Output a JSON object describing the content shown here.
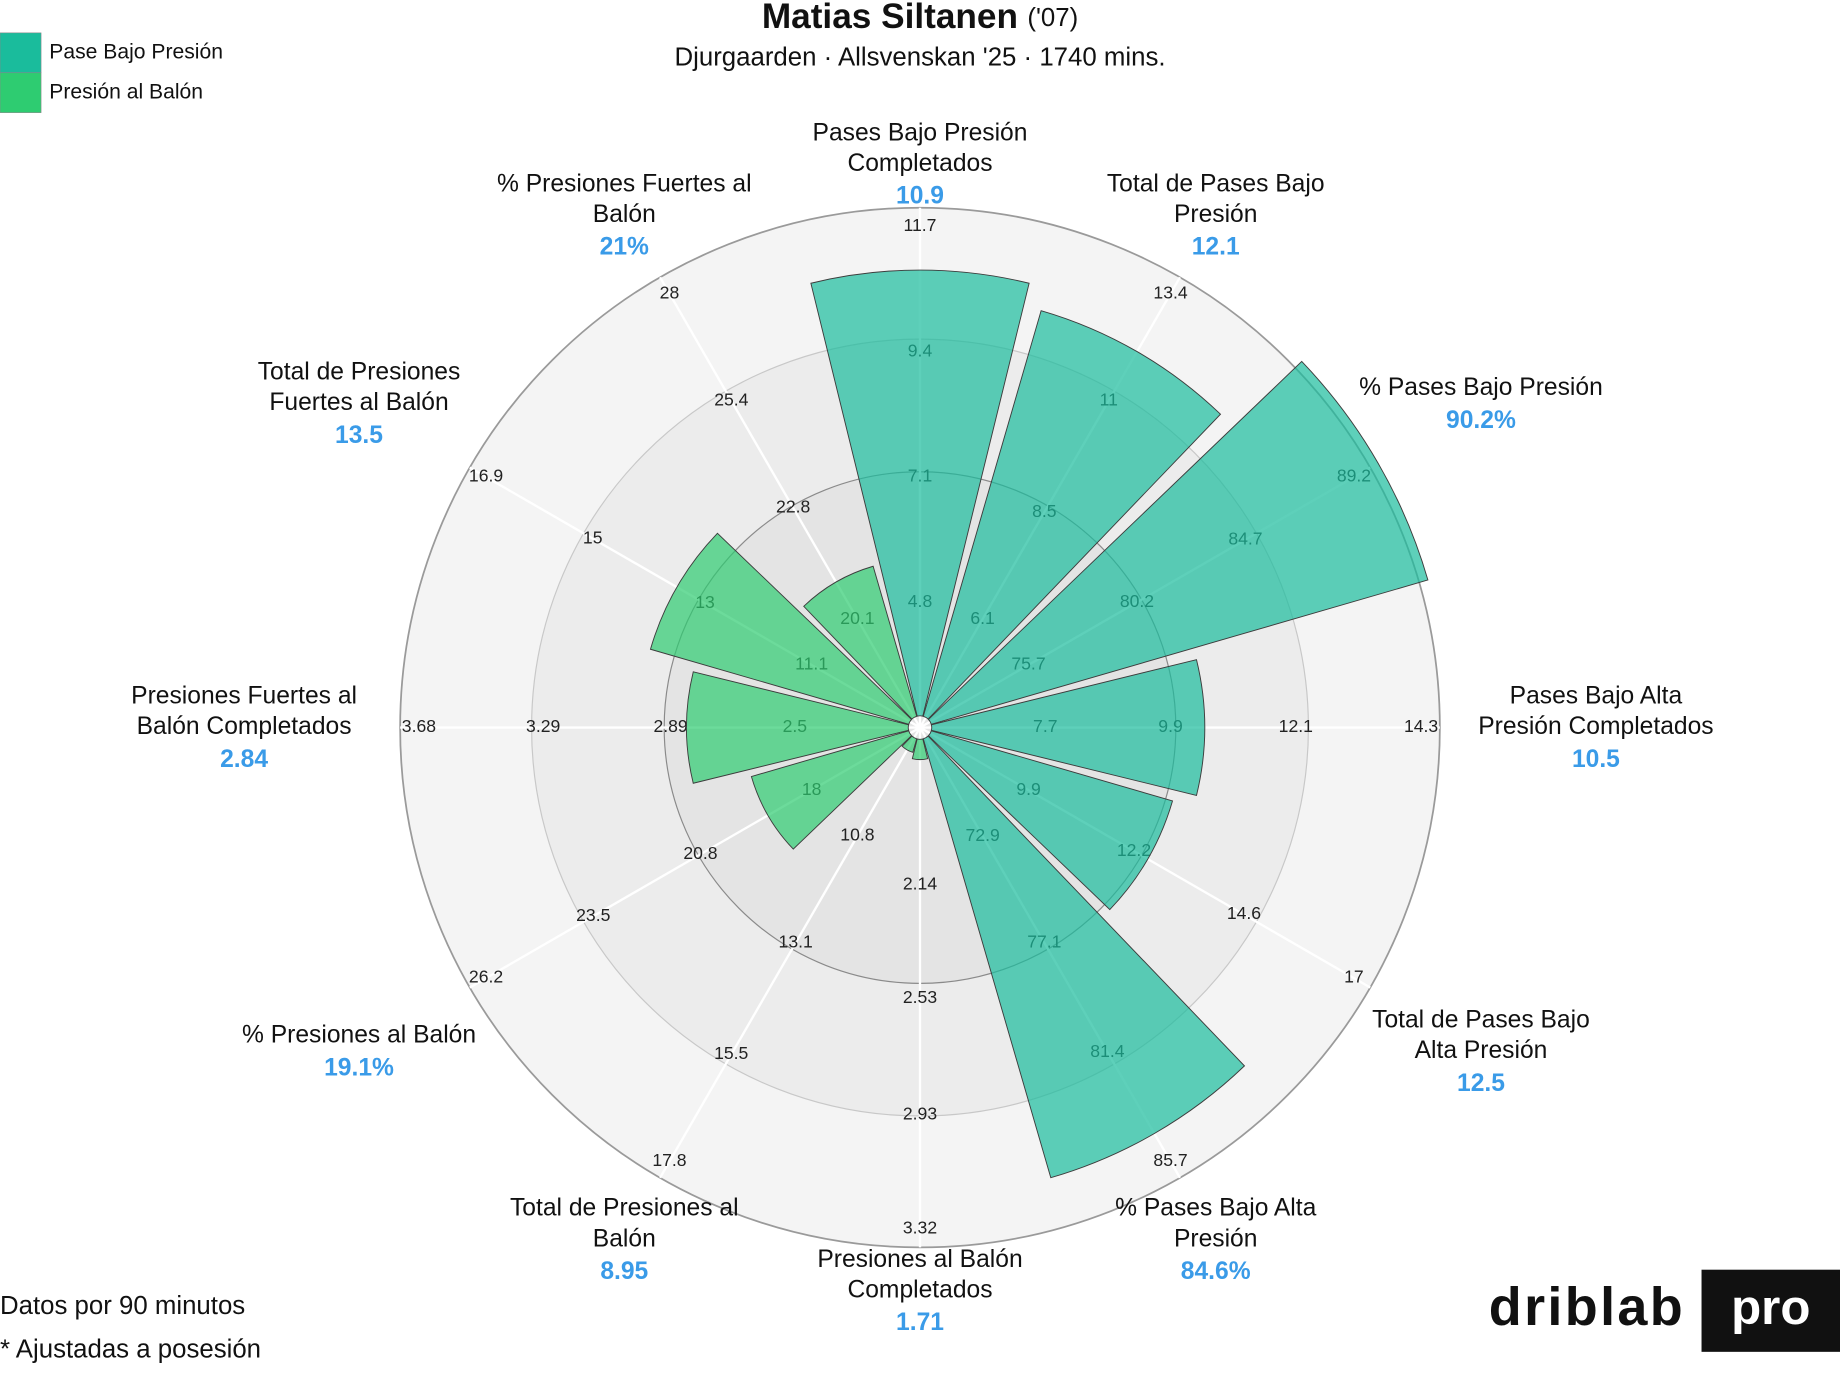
{
  "chart_data": {
    "type": "pizza",
    "title": "Matias Siltanen",
    "title_suffix": "('07)",
    "subtitle": "Djurgaarden · Allsvenskan '25 · 1740 mins.",
    "series": [
      {
        "name": "Pase Bajo Presión",
        "color": "#1abc9c"
      },
      {
        "name": "Presión al Balón",
        "color": "#2ecc71"
      }
    ],
    "slices": [
      {
        "label": [
          "Pases Bajo Presión",
          "Completados"
        ],
        "value": 10.9,
        "series": 0,
        "ticks": [
          4.8,
          7.1,
          9.4,
          11.7
        ],
        "rlim": [
          2.5,
          11.7
        ]
      },
      {
        "label": [
          "Total de Pases Bajo",
          "Presión"
        ],
        "value": 12.1,
        "series": 0,
        "ticks": [
          6.1,
          8.5,
          11,
          13.4
        ],
        "rlim": [
          3.67,
          13.4
        ]
      },
      {
        "label": [
          "% Pases Bajo Presión"
        ],
        "value": 90.2,
        "value_label": "90.2%",
        "series": 0,
        "ticks": [
          75.7,
          80.2,
          84.7,
          89.2
        ],
        "rlim": [
          71.2,
          89.2
        ]
      },
      {
        "label": [
          "Pases Bajo Alta",
          "Presión Completados"
        ],
        "value": 10.5,
        "series": 0,
        "ticks": [
          7.7,
          9.9,
          12.1,
          14.3
        ],
        "rlim": [
          5.5,
          14.3
        ]
      },
      {
        "label": [
          "Total de Pases Bajo",
          "Alta Presión"
        ],
        "value": 12.5,
        "series": 0,
        "ticks": [
          9.9,
          12.2,
          14.6,
          17
        ],
        "rlim": [
          7.53,
          17
        ]
      },
      {
        "label": [
          "% Pases Bajo Alta",
          "Presión"
        ],
        "value": 84.6,
        "value_label": "84.6%",
        "series": 0,
        "ticks": [
          72.9,
          77.1,
          81.4,
          85.7
        ],
        "rlim": [
          68.63,
          85.7
        ]
      },
      {
        "label": [
          "Presiones al Balón",
          "Completados"
        ],
        "value": 1.71,
        "series": 1,
        "ticks": [
          2.14,
          2.53,
          2.93,
          3.32
        ],
        "rlim": [
          1.6,
          3.32
        ]
      },
      {
        "label": [
          "Total de Presiones al",
          "Balón"
        ],
        "value": 8.95,
        "series": 1,
        "ticks": [
          10.8,
          13.1,
          15.5,
          17.8
        ],
        "rlim": [
          8.47,
          17.8
        ]
      },
      {
        "label": [
          "% Presiones al Balón"
        ],
        "value": 19.1,
        "value_label": "19.1%",
        "series": 1,
        "ticks": [
          18,
          20.8,
          23.5,
          26.2
        ],
        "rlim": [
          15.27,
          26.2
        ]
      },
      {
        "label": [
          "Presiones Fuertes al",
          "Balón Completados"
        ],
        "value": 2.84,
        "series": 1,
        "ticks": [
          2.5,
          2.89,
          3.29,
          3.68
        ],
        "rlim": [
          2.107,
          3.68
        ]
      },
      {
        "label": [
          "Total de Presiones",
          "Fuertes al Balón"
        ],
        "value": 13.5,
        "series": 1,
        "ticks": [
          11.1,
          13,
          15,
          16.9
        ],
        "rlim": [
          9.17,
          16.9
        ]
      },
      {
        "label": [
          "% Presiones Fuertes al",
          "Balón"
        ],
        "value": 21,
        "value_label": "21%",
        "series": 1,
        "ticks": [
          20.1,
          22.8,
          25.4,
          28
        ],
        "rlim": [
          17.47,
          28
        ]
      }
    ],
    "notes": [
      "Datos por 90 minutos",
      "* Ajustadas a posesión"
    ],
    "logo": [
      "driblab",
      "pro"
    ]
  }
}
